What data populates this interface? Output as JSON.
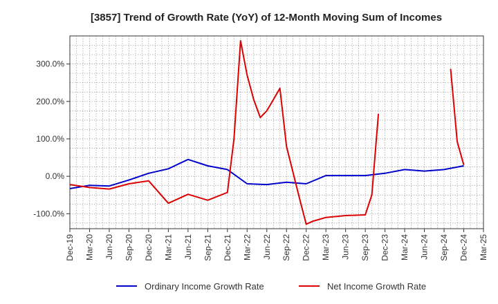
{
  "chart_data": {
    "type": "line",
    "title": "[3857]  Trend of Growth Rate (YoY) of 12-Month Moving Sum of Incomes",
    "xlabel": "",
    "ylabel": "",
    "x_ticks": [
      "Dec-19",
      "Mar-20",
      "Jun-20",
      "Sep-20",
      "Dec-20",
      "Mar-21",
      "Jun-21",
      "Sep-21",
      "Dec-21",
      "Mar-22",
      "Jun-22",
      "Sep-22",
      "Dec-22",
      "Mar-23",
      "Jun-23",
      "Sep-23",
      "Dec-23",
      "Mar-24",
      "Jun-24",
      "Sep-24",
      "Dec-24",
      "Mar-25"
    ],
    "y_ticks": [
      {
        "value": 300,
        "label": "300.0%"
      },
      {
        "value": 200,
        "label": "200.0%"
      },
      {
        "value": 100,
        "label": "100.0%"
      },
      {
        "value": 0,
        "label": "0.0%"
      },
      {
        "value": -100,
        "label": "-100.0%"
      }
    ],
    "ylim": [
      -140,
      375
    ],
    "x_range_months": [
      0,
      63
    ],
    "grid": true,
    "legend_position": "bottom",
    "series": [
      {
        "name": "Ordinary Income Growth Rate",
        "color": "#0000cc",
        "points": [
          [
            0,
            -33
          ],
          [
            3,
            -24
          ],
          [
            6,
            -26
          ],
          [
            9,
            -10
          ],
          [
            12,
            8
          ],
          [
            15,
            20
          ],
          [
            18,
            45
          ],
          [
            21,
            28
          ],
          [
            24,
            18
          ],
          [
            27,
            -20
          ],
          [
            30,
            -22
          ],
          [
            33,
            -16
          ],
          [
            36,
            -20
          ],
          [
            39,
            2
          ],
          [
            42,
            2
          ],
          [
            45,
            2
          ],
          [
            48,
            8
          ],
          [
            51,
            18
          ],
          [
            54,
            14
          ],
          [
            57,
            18
          ],
          [
            60,
            28
          ]
        ]
      },
      {
        "name": "Net Income Growth Rate",
        "color": "#dd0000",
        "points": [
          [
            0,
            -22
          ],
          [
            3,
            -30
          ],
          [
            6,
            -34
          ],
          [
            9,
            -20
          ],
          [
            12,
            -12
          ],
          [
            15,
            -72
          ],
          [
            18,
            -48
          ],
          [
            21,
            -64
          ],
          [
            24,
            -43
          ],
          [
            25,
            100
          ],
          [
            26,
            362
          ],
          [
            27,
            270
          ],
          [
            28,
            205
          ],
          [
            29,
            157
          ],
          [
            30,
            175
          ],
          [
            31,
            205
          ],
          [
            32,
            235
          ],
          [
            33,
            80
          ],
          [
            35,
            -60
          ],
          [
            36,
            -128
          ],
          [
            37,
            -120
          ],
          [
            38,
            -115
          ],
          [
            39,
            -110
          ],
          [
            42,
            -105
          ],
          [
            45,
            -103
          ],
          [
            46,
            -50
          ],
          [
            47,
            167
          ]
        ]
      },
      {
        "name": "Net Income Growth Rate",
        "color": "#dd0000",
        "points": [
          [
            58,
            287
          ],
          [
            59,
            93
          ],
          [
            60,
            30
          ]
        ]
      }
    ]
  }
}
